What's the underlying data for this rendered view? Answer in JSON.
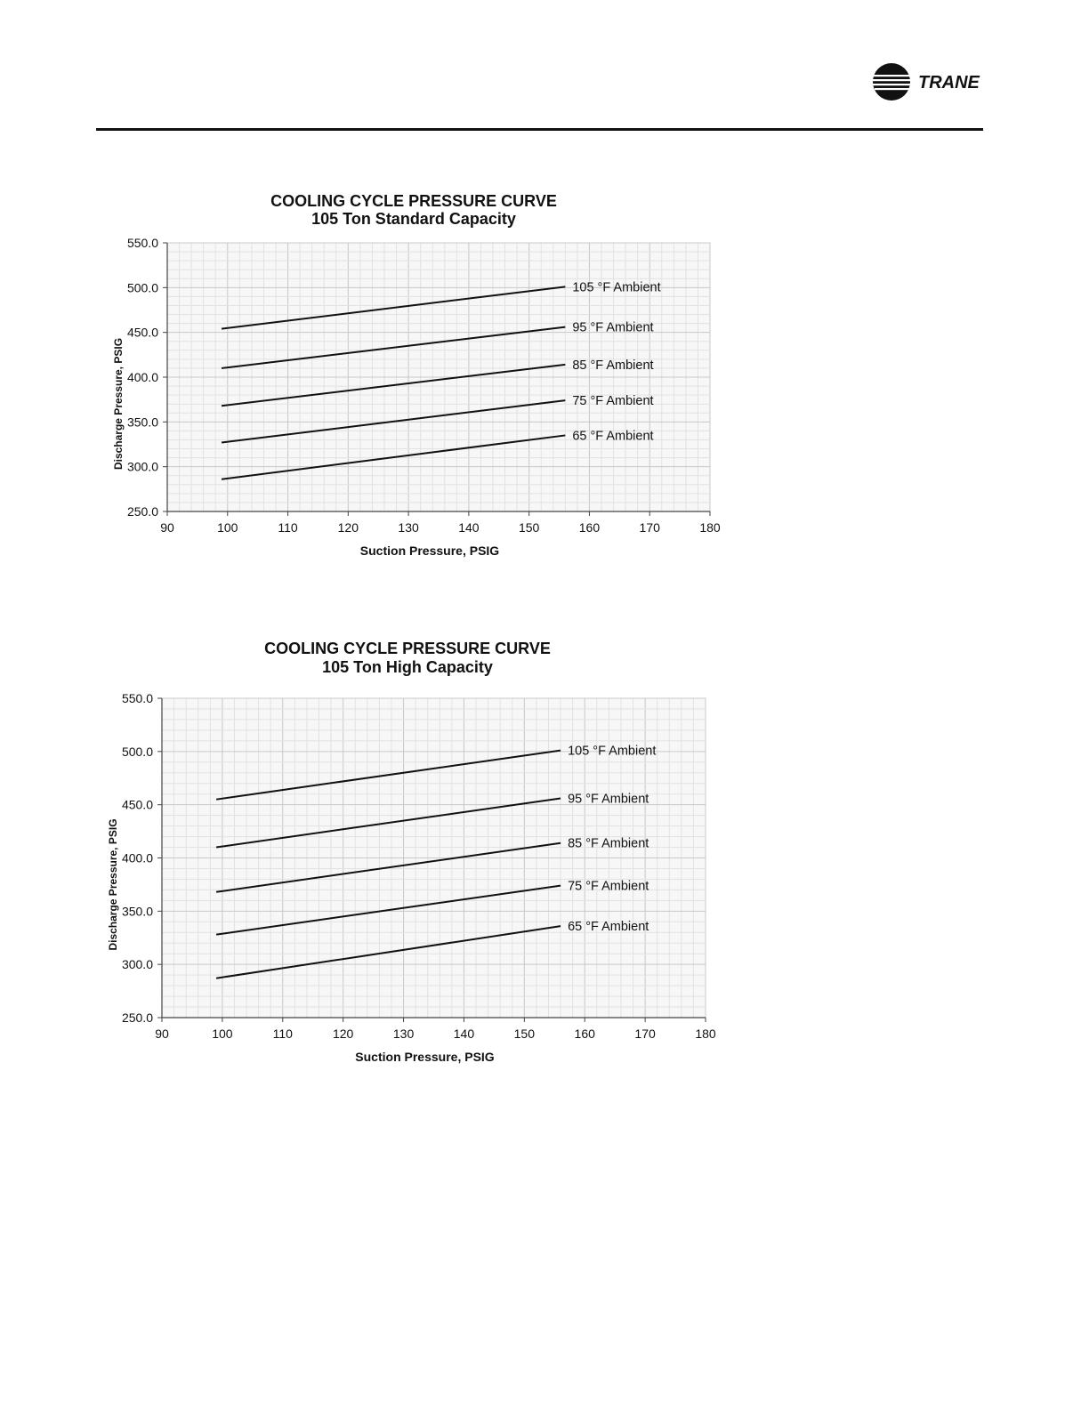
{
  "header": {
    "brand": "TRANE",
    "brand_icon": "trane-globe-logo-icon"
  },
  "chart_data": [
    {
      "type": "line",
      "title": "COOLING CYCLE PRESSURE CURVE",
      "subtitle": "105 Ton Standard Capacity",
      "xlabel": "Suction Pressure, PSIG",
      "ylabel": "Discharge Pressure, PSIG",
      "xlim": [
        90,
        180
      ],
      "ylim": [
        250,
        550
      ],
      "xticks": [
        90,
        100,
        110,
        120,
        130,
        140,
        150,
        160,
        170,
        180
      ],
      "yticks": [
        "250.0",
        "300.0",
        "350.0",
        "400.0",
        "450.0",
        "500.0",
        "550.0"
      ],
      "grid": true,
      "legend": "inline-right",
      "x": [
        99,
        156
      ],
      "series": [
        {
          "name": "105 °F Ambient",
          "values": [
            454,
            501
          ]
        },
        {
          "name": "95 °F Ambient",
          "values": [
            410,
            456
          ]
        },
        {
          "name": "85 °F Ambient",
          "values": [
            368,
            414
          ]
        },
        {
          "name": "75 °F Ambient",
          "values": [
            327,
            374
          ]
        },
        {
          "name": "65 °F Ambient",
          "values": [
            286,
            335
          ]
        }
      ]
    },
    {
      "type": "line",
      "title": "COOLING CYCLE PRESSURE CURVE",
      "subtitle": "105 Ton High Capacity",
      "xlabel": "Suction Pressure, PSIG",
      "ylabel": "Discharge Pressure, PSIG",
      "xlim": [
        90,
        180
      ],
      "ylim": [
        250,
        550
      ],
      "xticks": [
        90,
        100,
        110,
        120,
        130,
        140,
        150,
        160,
        170,
        180
      ],
      "yticks": [
        "250.0",
        "300.0",
        "350.0",
        "400.0",
        "450.0",
        "500.0",
        "550.0"
      ],
      "grid": true,
      "legend": "inline-right",
      "x": [
        99,
        156
      ],
      "series": [
        {
          "name": "105 °F Ambient",
          "values": [
            455,
            501
          ]
        },
        {
          "name": "95 °F Ambient",
          "values": [
            410,
            456
          ]
        },
        {
          "name": "85 °F Ambient",
          "values": [
            368,
            414
          ]
        },
        {
          "name": "75 °F Ambient",
          "values": [
            328,
            374
          ]
        },
        {
          "name": "65 °F Ambient",
          "values": [
            287,
            336
          ]
        }
      ]
    }
  ]
}
